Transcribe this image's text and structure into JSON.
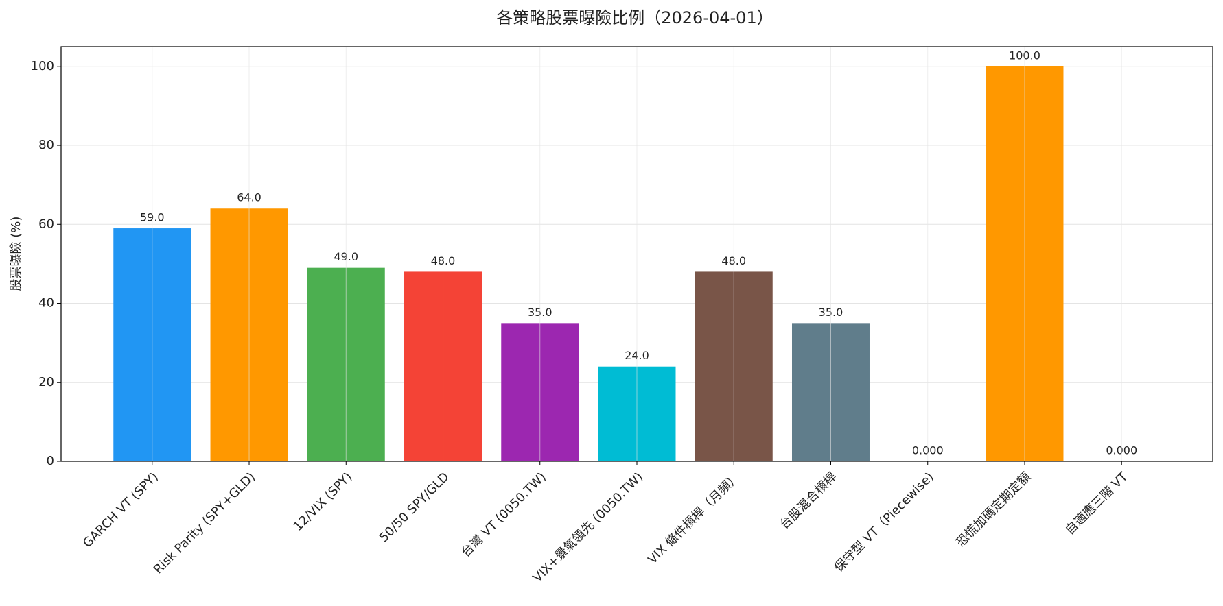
{
  "chart_data": {
    "type": "bar",
    "title": "各策略股票曝險比例（2026-04-01）",
    "y_label": "股票曝險 (%)",
    "categories": [
      "GARCH VT (SPY)",
      "Risk Parity (SPY+GLD)",
      "12/VIX (SPY)",
      "50/50 SPY/GLD",
      "台灣 VT (0050.TW)",
      "VIX+景氣領先 (0050.TW)",
      "VIX 條件槓桿（月頻）",
      "台股混合槓桿",
      "保守型 VT（Piecewise)",
      "恐慌加碼定期定額",
      "自適應三階 VT"
    ],
    "values": [
      59,
      64,
      49,
      48,
      35,
      24,
      48,
      35,
      0,
      100,
      0
    ],
    "value_labels": [
      "59.0",
      "64.0",
      "49.0",
      "48.0",
      "35.0",
      "24.0",
      "48.0",
      "35.0",
      "0.000",
      "100.0",
      "0.000"
    ],
    "colors": [
      "#2196f3",
      "#ff9800",
      "#4caf50",
      "#f44336",
      "#9c27b0",
      "#00bcd4",
      "#795548",
      "#607d8b",
      "#9e9e9e",
      "#ff9800",
      "#3f51b5"
    ],
    "ylim": [
      0,
      105
    ],
    "yticks": [
      0,
      20,
      40,
      60,
      80,
      100
    ],
    "grid": true
  }
}
